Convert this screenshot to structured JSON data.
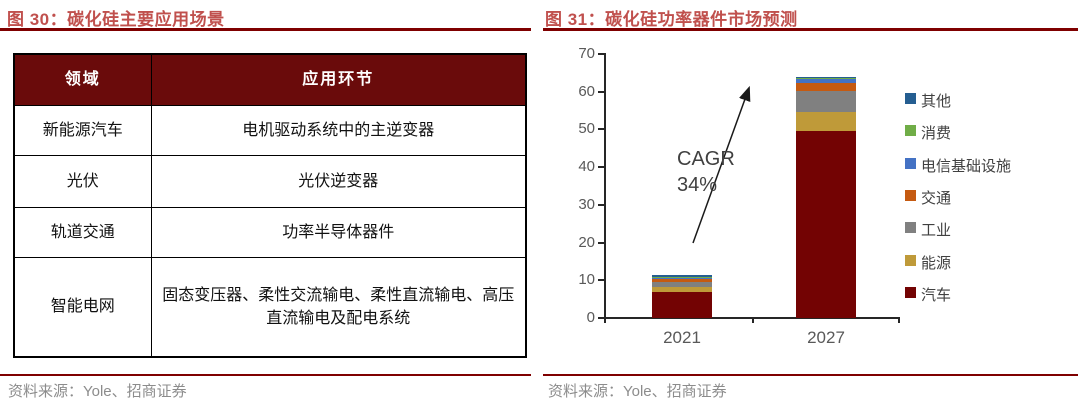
{
  "figure30": {
    "title": "图 30：碳化硅主要应用场景",
    "table": {
      "headers": [
        "领域",
        "应用环节"
      ],
      "rows": [
        {
          "field": "新能源汽车",
          "application": "电机驱动系统中的主逆变器"
        },
        {
          "field": "光伏",
          "application": "光伏逆变器"
        },
        {
          "field": "轨道交通",
          "application": "功率半导体器件"
        },
        {
          "field": "智能电网",
          "application": "固态变压器、柔性交流输电、柔性直流输电、高压直流输电及配电系统"
        }
      ]
    },
    "source": "资料来源：Yole、招商证券"
  },
  "figure31": {
    "title": "图 31：碳化硅功率器件市场预测",
    "annotation": {
      "line1": "CAGR",
      "line2": "34%"
    },
    "source": "资料来源：Yole、招商证券"
  },
  "chart_data": {
    "type": "bar",
    "stacked": true,
    "title": "碳化硅功率器件市场预测",
    "categories": [
      "2021",
      "2027"
    ],
    "series": [
      {
        "name": "汽车",
        "color": "#730303",
        "values": [
          7.0,
          49.5
        ]
      },
      {
        "name": "能源",
        "color": "#BF9A39",
        "values": [
          1.3,
          5.2
        ]
      },
      {
        "name": "工业",
        "color": "#808080",
        "values": [
          1.3,
          5.5
        ]
      },
      {
        "name": "交通",
        "color": "#C55A11",
        "values": [
          0.8,
          2.1
        ]
      },
      {
        "name": "电信基础设施",
        "color": "#4472C4",
        "values": [
          0.5,
          1.2
        ]
      },
      {
        "name": "消费",
        "color": "#70AD47",
        "values": [
          0.1,
          0.2
        ]
      },
      {
        "name": "其他",
        "color": "#255E91",
        "values": [
          0.3,
          0.3
        ]
      }
    ],
    "totals": [
      11.3,
      64.0
    ],
    "stack_order": "bottom-to-top",
    "legend_position": "right",
    "legend_order": [
      "其他",
      "消费",
      "电信基础设施",
      "交通",
      "工业",
      "能源",
      "汽车"
    ],
    "ylim": [
      0,
      70
    ],
    "yticks": [
      0,
      10,
      20,
      30,
      40,
      50,
      60,
      70
    ],
    "grid": false,
    "annotation": "CAGR 34%"
  },
  "colors": {
    "title_text": "#C0504D",
    "rule": "#7F0000",
    "table_header_bg": "#6A0B0B",
    "axis": "#262626",
    "axis_text": "#595959",
    "source_text": "#8c8c8c"
  }
}
